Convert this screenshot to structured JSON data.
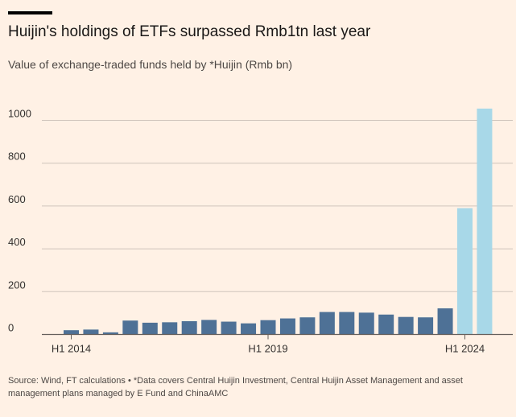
{
  "header": {
    "title": "Huijin's holdings of ETFs surpassed Rmb1tn last year",
    "subtitle": "Value of exchange-traded funds held by *Huijin (Rmb bn)"
  },
  "footer": {
    "source": "Source: Wind, FT calculations • *Data covers Central Huijin Investment, Central Huijin Asset Management and asset management plans managed by E Fund and ChinaAMC"
  },
  "colors": {
    "background": "#fff1e5",
    "bar_primary": "#4e7196",
    "bar_highlight": "#a8d8e8",
    "gridline": "#cfc5bc",
    "axis_line": "#66605c",
    "text": "#33302e"
  },
  "chart_data": {
    "type": "bar",
    "x_tick_labels": [
      "H1 2014",
      "H1 2019",
      "H1 2024"
    ],
    "x_tick_index": [
      0,
      10,
      20
    ],
    "values": [
      20,
      23,
      10,
      65,
      55,
      57,
      62,
      68,
      60,
      52,
      67,
      75,
      80,
      105,
      105,
      102,
      93,
      82,
      80,
      122,
      590,
      1055
    ],
    "highlight_from_index": 20,
    "yticks": [
      0,
      200,
      400,
      600,
      800,
      1000
    ],
    "ylim": [
      0,
      1100
    ],
    "grid": true
  }
}
